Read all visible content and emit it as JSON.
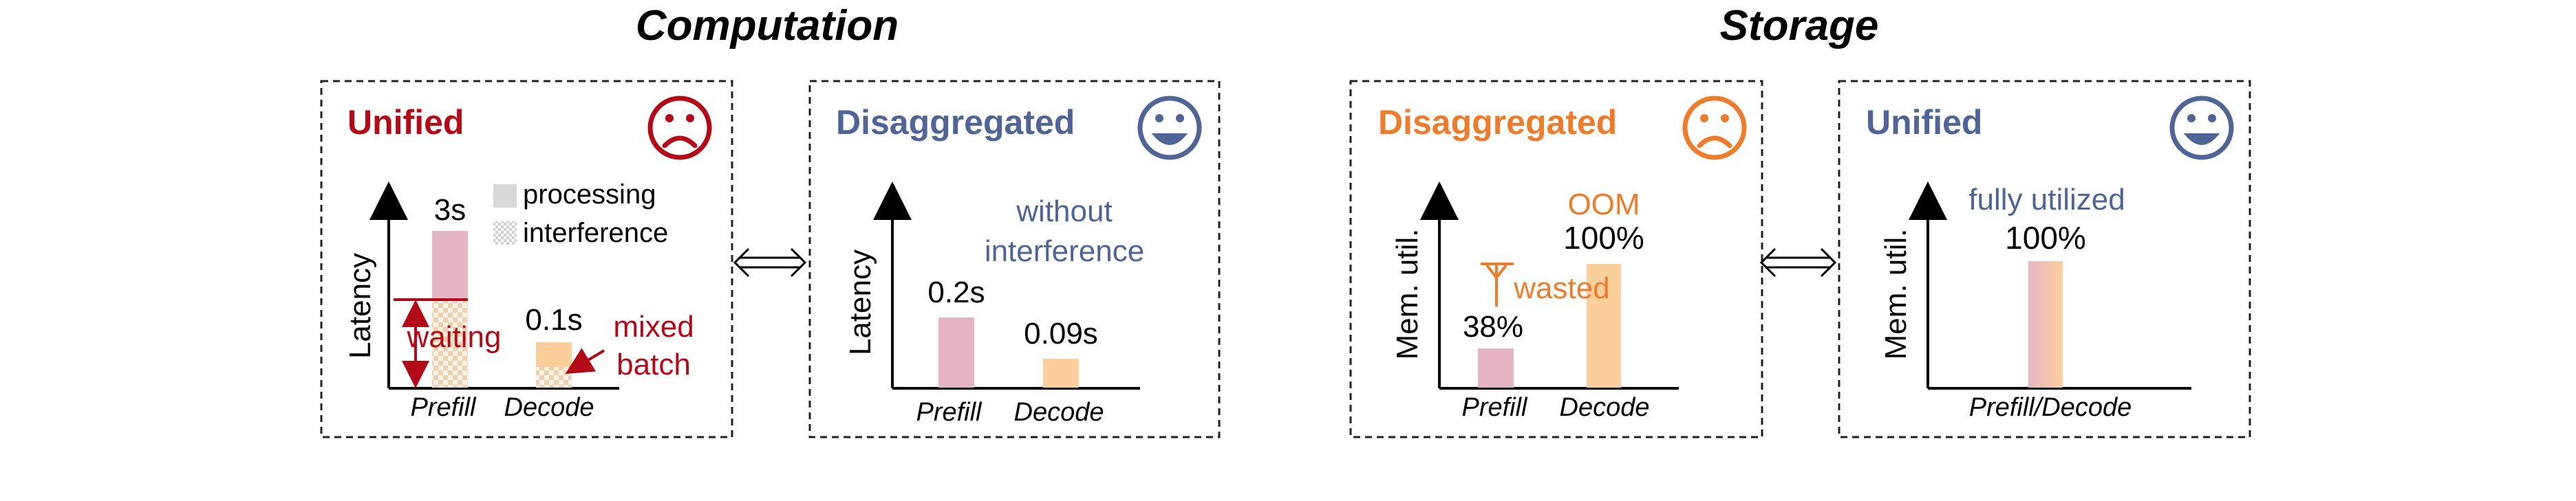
{
  "sections": {
    "computation": "Computation",
    "storage": "Storage"
  },
  "colors": {
    "red": "#b20a16",
    "blue": "#4f6597",
    "orange": "#ec7d2d",
    "pink": "#e4b6c3",
    "peach": "#fbcf9c"
  },
  "panels": {
    "comp_unified": {
      "title": "Unified",
      "face": "sad-face-icon",
      "ylabel": "Latency",
      "x_ticks": [
        "Prefill",
        "Decode"
      ],
      "prefill_label": "3s",
      "decode_label": "0.1s",
      "legend": {
        "processing": "processing",
        "interference": "interference"
      },
      "waiting": "waiting",
      "mixed_line1": "mixed",
      "mixed_line2": "batch"
    },
    "comp_disagg": {
      "title": "Disaggregated",
      "face": "happy-face-icon",
      "ylabel": "Latency",
      "x_ticks": [
        "Prefill",
        "Decode"
      ],
      "prefill_label": "0.2s",
      "decode_label": "0.09s",
      "note_line1": "without",
      "note_line2": "interference"
    },
    "stor_disagg": {
      "title": "Disaggregated",
      "face": "sad-face-icon",
      "ylabel": "Mem. util.",
      "x_ticks": [
        "Prefill",
        "Decode"
      ],
      "prefill_label": "38%",
      "decode_label": "100%",
      "oom": "OOM",
      "wasted": "wasted"
    },
    "stor_unified": {
      "title": "Unified",
      "face": "happy-face-icon",
      "ylabel": "Mem. util.",
      "x_tick": "Prefill/Decode",
      "bar_label": "100%",
      "note": "fully utilized"
    }
  },
  "connectors": [
    "double-arrow-icon",
    "double-arrow-icon"
  ]
}
